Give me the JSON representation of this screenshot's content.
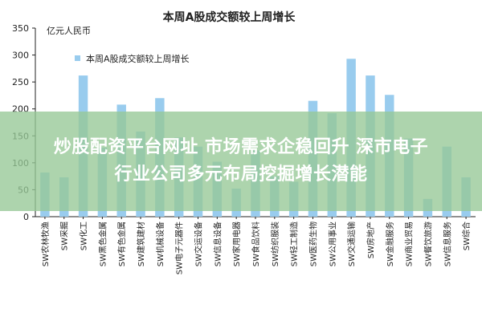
{
  "colors": {
    "bar": "#99CCEE",
    "axis": "#222222",
    "text": "#222222",
    "overlay_text": "#ffffff",
    "overlay_bg": "#96C896"
  },
  "overlay": {
    "line1": "炒股配资平台网址 市场需求企稳回升 深市电子",
    "line2": "行业公司多元布局挖掘增长潜能"
  },
  "chart_data": {
    "type": "bar",
    "title": "本周A股成交额较上周增长",
    "ylabel": "亿元人民币",
    "legend_label": "本周A股成交额较上周增长",
    "legend_position": "top-left",
    "ylim": [
      0,
      350
    ],
    "yticks": [
      0,
      50,
      100,
      150,
      200,
      250,
      300,
      350
    ],
    "grid": false,
    "categories": [
      "SW农林牧渔",
      "SW采掘",
      "SW化工",
      "SW黑色金属",
      "SW有色金属",
      "SW建筑建材",
      "SW机械设备",
      "SW电子元器件",
      "SW交运设备",
      "SW信息设备",
      "SW家用电器",
      "SW食品饮料",
      "SW纺织服装",
      "SW轻工制造",
      "SW医药生物",
      "SW公用事业",
      "SW交通运输",
      "SW房地产",
      "SW金融服务",
      "SW商业贸易",
      "SW餐饮旅游",
      "SW信息服务",
      "SW综合"
    ],
    "values": [
      82,
      73,
      262,
      128,
      208,
      158,
      220,
      147,
      130,
      102,
      52,
      123,
      75,
      65,
      215,
      192,
      293,
      262,
      226,
      145,
      33,
      130,
      73
    ]
  }
}
